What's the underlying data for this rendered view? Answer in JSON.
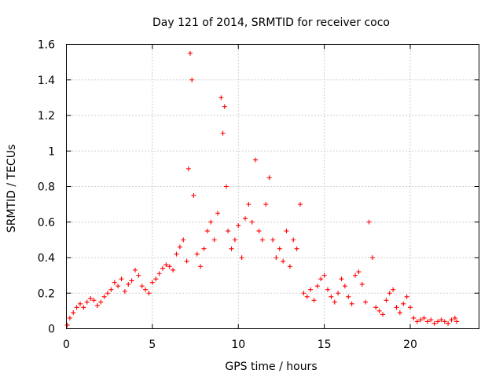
{
  "chart_data": {
    "type": "scatter",
    "title": "Day 121 of 2014, SRMTID for receiver coco",
    "xlabel": "GPS time / hours",
    "ylabel": "SRMTID / TECUs",
    "xlim": [
      0,
      24
    ],
    "ylim": [
      0,
      1.6
    ],
    "x_ticks": [
      0,
      5,
      10,
      15,
      20
    ],
    "x_tick_labels": [
      "0",
      "5",
      "10",
      "15",
      "20"
    ],
    "y_ticks": [
      0,
      0.2,
      0.4,
      0.6,
      0.8,
      1.0,
      1.2,
      1.4,
      1.6
    ],
    "y_tick_labels": [
      "0",
      "0.2",
      "0.4",
      "0.6",
      "0.8",
      "1",
      "1.2",
      "1.4",
      "1.6"
    ],
    "grid": true,
    "marker": "plus",
    "color": "#ff0000",
    "series": [
      {
        "name": "SRMTID",
        "x": [
          0.05,
          0.2,
          0.4,
          0.6,
          0.8,
          1.0,
          1.2,
          1.4,
          1.6,
          1.8,
          2.0,
          2.2,
          2.4,
          2.6,
          2.8,
          3.0,
          3.2,
          3.4,
          3.6,
          3.8,
          4.0,
          4.2,
          4.4,
          4.6,
          4.8,
          5.0,
          5.2,
          5.4,
          5.6,
          5.8,
          6.0,
          6.2,
          6.4,
          6.6,
          6.8,
          7.0,
          7.1,
          7.2,
          7.3,
          7.4,
          7.6,
          7.8,
          8.0,
          8.2,
          8.4,
          8.6,
          8.8,
          9.0,
          9.1,
          9.2,
          9.3,
          9.4,
          9.6,
          9.8,
          10.0,
          10.2,
          10.4,
          10.6,
          10.8,
          11.0,
          11.2,
          11.4,
          11.6,
          11.8,
          12.0,
          12.2,
          12.4,
          12.6,
          12.8,
          13.0,
          13.2,
          13.4,
          13.6,
          13.8,
          14.0,
          14.2,
          14.4,
          14.6,
          14.8,
          15.0,
          15.2,
          15.4,
          15.6,
          15.8,
          16.0,
          16.2,
          16.4,
          16.6,
          16.8,
          17.0,
          17.2,
          17.4,
          17.6,
          17.8,
          18.0,
          18.2,
          18.4,
          18.6,
          18.8,
          19.0,
          19.2,
          19.4,
          19.6,
          19.8,
          20.0,
          20.2,
          20.4,
          20.6,
          20.8,
          21.0,
          21.2,
          21.4,
          21.6,
          21.8,
          22.0,
          22.2,
          22.4,
          22.6,
          22.7
        ],
        "y": [
          0.02,
          0.06,
          0.09,
          0.12,
          0.14,
          0.12,
          0.15,
          0.17,
          0.16,
          0.13,
          0.15,
          0.18,
          0.2,
          0.22,
          0.26,
          0.24,
          0.28,
          0.21,
          0.25,
          0.27,
          0.33,
          0.3,
          0.24,
          0.22,
          0.2,
          0.26,
          0.28,
          0.31,
          0.34,
          0.36,
          0.35,
          0.33,
          0.42,
          0.46,
          0.5,
          0.38,
          0.9,
          1.55,
          1.4,
          0.75,
          0.42,
          0.35,
          0.45,
          0.55,
          0.6,
          0.5,
          0.65,
          1.3,
          1.1,
          1.25,
          0.8,
          0.55,
          0.45,
          0.5,
          0.58,
          0.4,
          0.62,
          0.7,
          0.6,
          0.95,
          0.55,
          0.5,
          0.7,
          0.85,
          0.5,
          0.4,
          0.45,
          0.38,
          0.55,
          0.35,
          0.5,
          0.45,
          0.7,
          0.2,
          0.18,
          0.22,
          0.16,
          0.24,
          0.28,
          0.3,
          0.22,
          0.18,
          0.15,
          0.2,
          0.28,
          0.24,
          0.18,
          0.14,
          0.3,
          0.32,
          0.25,
          0.15,
          0.6,
          0.4,
          0.12,
          0.1,
          0.08,
          0.16,
          0.2,
          0.22,
          0.12,
          0.09,
          0.14,
          0.18,
          0.12,
          0.06,
          0.04,
          0.05,
          0.06,
          0.04,
          0.05,
          0.03,
          0.04,
          0.05,
          0.04,
          0.03,
          0.05,
          0.06,
          0.04
        ]
      }
    ]
  }
}
